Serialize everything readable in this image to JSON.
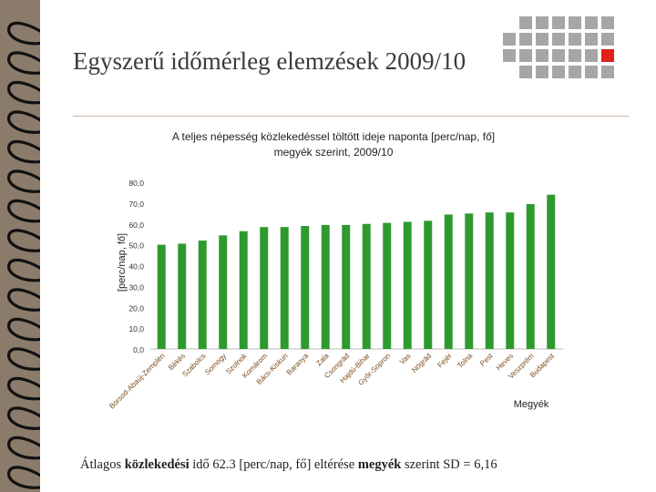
{
  "slide": {
    "title": "Egyszerű időmérleg elemzések 2009/10",
    "footer": {
      "part1": "Átlagos ",
      "part2": "közlekedési",
      "part3": " idő 62.3 [perc/nap, fő] eltérése ",
      "part4": "megyék",
      "part5": " szerint SD = 6,16"
    }
  },
  "colors": {
    "bar": "#2e9a2e",
    "background": "#8b7b6b",
    "deco_square": "#a6a6a6",
    "deco_accent": "#e0201b"
  },
  "chart_data": {
    "type": "bar",
    "title_line1": "A teljes népesség közlekedéssel töltött ideje naponta [perc/nap, fő]",
    "title_line2": "megyék szerint, 2009/10",
    "ylabel": "[perc/nap, fő]",
    "xlabel": "Megyék",
    "ylim": [
      0,
      80
    ],
    "yticks": [
      "0,0",
      "10,0",
      "20,0",
      "30,0",
      "40,0",
      "50,0",
      "60,0",
      "70,0",
      "80,0"
    ],
    "categories": [
      "Borsod-Abaúj-Zemplén",
      "Békés",
      "Szabolcs",
      "Somogy",
      "Szolnok",
      "Komárom",
      "Bács-Kiskun",
      "Baranya",
      "Zala",
      "Csongrád",
      "Hajdú-Bihar",
      "Győr-Sopron",
      "Vas",
      "Nógrád",
      "Fejér",
      "Tolna",
      "Pest",
      "Heves",
      "Veszprém",
      "Budapest"
    ],
    "values": [
      50.0,
      50.5,
      52.0,
      54.5,
      56.5,
      58.5,
      58.5,
      59.0,
      59.5,
      59.5,
      60.0,
      60.5,
      61.0,
      61.5,
      64.5,
      65.0,
      65.5,
      65.5,
      69.5,
      74.0
    ],
    "grid": false
  }
}
